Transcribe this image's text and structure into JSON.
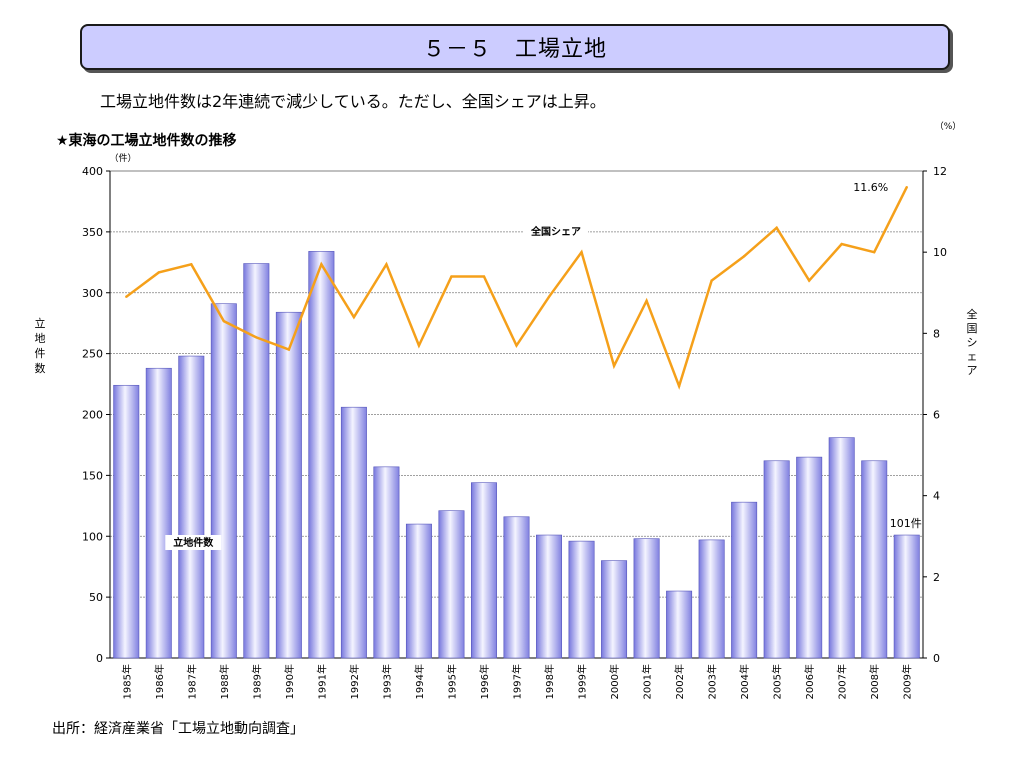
{
  "header": {
    "title": "５－５　工場立地",
    "subtitle": "工場立地件数は2年連続で減少している。ただし、全国シェアは上昇。"
  },
  "chart_heading": "★東海の工場立地件数の推移",
  "source": "出所：経済産業省「工場立地動向調査」",
  "chart_data": {
    "type": "bar",
    "categories": [
      "1985年",
      "1986年",
      "1987年",
      "1988年",
      "1989年",
      "1990年",
      "1991年",
      "1992年",
      "1993年",
      "1994年",
      "1995年",
      "1996年",
      "1997年",
      "1998年",
      "1999年",
      "2000年",
      "2001年",
      "2002年",
      "2003年",
      "2004年",
      "2005年",
      "2006年",
      "2007年",
      "2008年",
      "2009年"
    ],
    "series": [
      {
        "name": "立地件数",
        "chart_type": "bar",
        "axis": "left",
        "values": [
          224,
          238,
          248,
          291,
          324,
          284,
          334,
          206,
          157,
          110,
          121,
          144,
          116,
          101,
          96,
          80,
          98,
          55,
          97,
          128,
          162,
          165,
          181,
          162,
          101
        ],
        "color": "#9999ee"
      },
      {
        "name": "全国シェア",
        "chart_type": "line",
        "axis": "right",
        "values": [
          8.9,
          9.5,
          9.7,
          8.3,
          7.9,
          7.6,
          9.7,
          8.4,
          9.7,
          7.7,
          9.4,
          9.4,
          7.7,
          8.9,
          10.0,
          7.2,
          8.8,
          6.7,
          9.3,
          9.9,
          10.6,
          9.3,
          10.2,
          10.0,
          11.6
        ],
        "color": "#f5a01a"
      }
    ],
    "ylabel": "立地件数",
    "y2label": "全国シェア",
    "y_unit": "（件）",
    "y2_unit": "（%）",
    "ylim": [
      0,
      400
    ],
    "y2lim": [
      0,
      12
    ],
    "yticks": [
      0,
      50,
      100,
      150,
      200,
      250,
      300,
      350,
      400
    ],
    "y2ticks": [
      0,
      2,
      4,
      6,
      8,
      10,
      12
    ],
    "grid": true,
    "annotations": {
      "bar_label": "立地件数",
      "line_label": "全国シェア",
      "last_bar": "101件",
      "last_line": "11.6%"
    }
  }
}
